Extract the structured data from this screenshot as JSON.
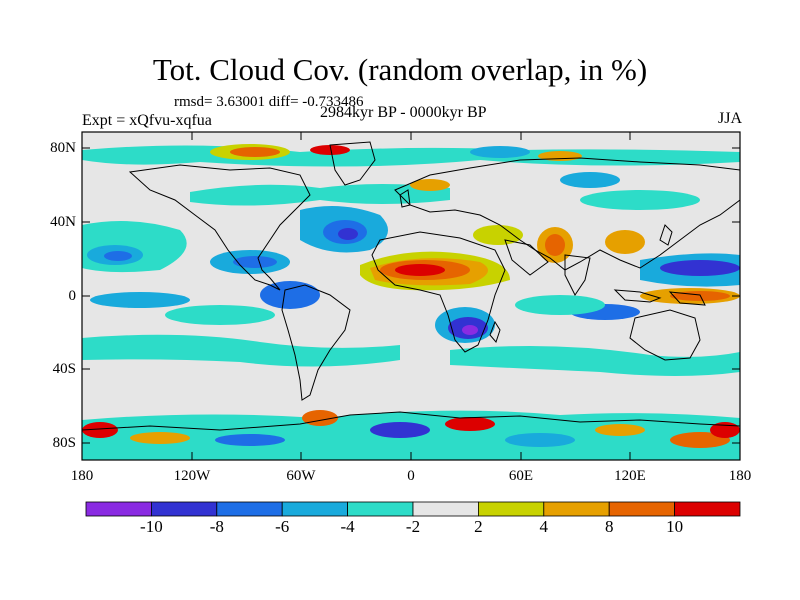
{
  "title": "Tot. Cloud Cov. (random overlap, in %)",
  "stats": "rmsd= 3.63001 diff= -0.733486",
  "expt": "Expt = xQfvu-xqfua",
  "period": "2984kyr BP - 0000kyr BP",
  "season": "JJA",
  "lat_labels": [
    "80N",
    "40N",
    "0",
    "40S",
    "80S"
  ],
  "lon_labels": [
    "180",
    "120W",
    "60W",
    "0",
    "60E",
    "120E",
    "180"
  ],
  "colorbar": {
    "labels": [
      "-10",
      "-8",
      "-6",
      "-4",
      "-2",
      "2",
      "4",
      "8",
      "10"
    ],
    "colors": [
      "#8a2be2",
      "#3232d2",
      "#1e6ee6",
      "#19aadc",
      "#2ddcc8",
      "#e6e6e6",
      "#c8d200",
      "#e6a000",
      "#e66400",
      "#dc0000"
    ]
  },
  "palette": {
    "neutral": "#e6e6e6",
    "coast": "#000000"
  }
}
